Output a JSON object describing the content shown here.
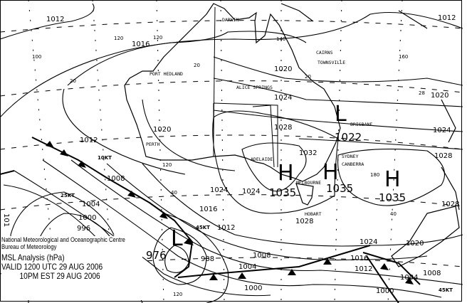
{
  "legend": {
    "organisation": "National Meteorological and Oceanographic Centre",
    "bureau": "Bureau of Meteorology",
    "title": "MSL Analysis (hPa)",
    "valid_utc": "VALID 1200 UTC 29 AUG 2006",
    "valid_local": "10PM EST 29 AUG 2006"
  },
  "cities": [
    "DARWIN",
    "PORT HEDLAND",
    "CAIRNS",
    "TOWNSVILLE",
    "ALICE SPRINGS",
    "BRISBANE",
    "PERTH",
    "ADELAIDE",
    "SYDNEY",
    "CANBERRA",
    "MELBOURNE",
    "HOBART"
  ],
  "pressure_centres": [
    {
      "type": "H",
      "value": "1035"
    },
    {
      "type": "H",
      "value": "1035"
    },
    {
      "type": "H",
      "value": "1035"
    },
    {
      "type": "L",
      "value": "1022"
    },
    {
      "type": "L",
      "value": "976"
    }
  ],
  "isobar_labels": [
    "1012",
    "1012",
    "1016",
    "1020",
    "1020",
    "1020",
    "1024",
    "1024",
    "1028",
    "1028",
    "1032",
    "1012",
    "1008",
    "1004",
    "1000",
    "996",
    "988",
    "1024",
    "1016",
    "1012",
    "1008",
    "1004",
    "1000",
    "1024",
    "1020",
    "1016",
    "1012",
    "1008",
    "1004",
    "1000",
    "1028",
    "1024",
    "1028",
    "101"
  ],
  "grid_labels": [
    "100",
    "120",
    "140",
    "160",
    "180",
    "20",
    "20",
    "20",
    "28",
    "40",
    "40",
    "120",
    "120",
    "120"
  ],
  "wind_labels": [
    "10KT",
    "25KT",
    "45KT",
    "45KT"
  ],
  "colors": {
    "ink": "#000000",
    "background": "#ffffff"
  }
}
